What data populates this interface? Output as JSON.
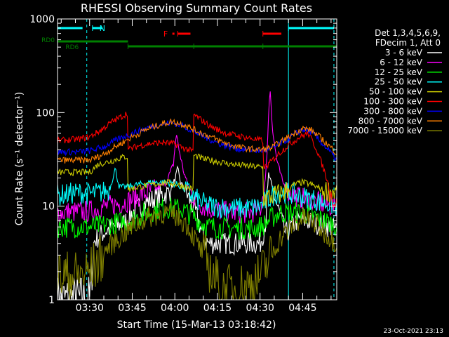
{
  "chart_data": {
    "type": "line",
    "title": "RHESSI Observing Summary Count Rates",
    "xlabel": "Start Time (15-Mar-13 03:18:42)",
    "ylabel": "Count Rate (s⁻¹ detector⁻¹)",
    "yscale": "log",
    "ylim": [
      1,
      1000
    ],
    "xlim": [
      "03:18:42",
      "04:57:00"
    ],
    "x_ticks": [
      "03:30",
      "03:45",
      "04:00",
      "04:15",
      "04:30",
      "04:45"
    ],
    "y_ticks": [
      "1",
      "10",
      "100",
      "1000"
    ],
    "footer": "23-Oct-2021 23:13",
    "legend_header": [
      "Det 1,3,4,5,6,9,",
      "FDecim 1, Att 0"
    ],
    "grid": false,
    "legend_position": "right",
    "flags": [
      {
        "label": "N",
        "color": "#00ffff",
        "segments": [
          [
            "03:18:42",
            "03:27:30"
          ],
          [
            "03:31:00",
            "03:34:30"
          ],
          [
            "04:40:00",
            "04:56:00"
          ]
        ]
      },
      {
        "label": "F",
        "color": "#ff0000",
        "segments": [
          [
            "04:01:00",
            "04:05:30"
          ],
          [
            "04:31:00",
            "04:37:30"
          ]
        ],
        "dots": [
          "03:59:30"
        ]
      },
      {
        "label": "RD0",
        "color": "#008000",
        "segments": [
          [
            "03:18:42",
            "03:43:30"
          ]
        ]
      },
      {
        "label": "RD6",
        "color": "#008000",
        "segments": [
          [
            "03:43:30",
            "04:06:40"
          ],
          [
            "04:06:40",
            "04:31:00"
          ],
          [
            "04:31:00",
            "04:57:00"
          ]
        ]
      }
    ],
    "vlines_solid": [
      "03:18:42",
      "04:40:00"
    ],
    "vlines_dashed": [
      "03:29:00",
      "04:56:00"
    ],
    "series": [
      {
        "name": "3 - 6 keV",
        "color": "#ffffff",
        "points": [
          [
            "03:18:42",
            1.0
          ],
          [
            "03:30:00",
            1.0
          ],
          [
            "03:31:30",
            4.2
          ],
          [
            "03:34:00",
            5.0
          ],
          [
            "03:38:00",
            6.0
          ],
          [
            "03:42:00",
            6.5
          ],
          [
            "03:45:00",
            8.5
          ],
          [
            "03:50:00",
            11
          ],
          [
            "03:55:00",
            13
          ],
          [
            "03:58:00",
            14
          ],
          [
            "04:00:00",
            19
          ],
          [
            "04:01:00",
            25
          ],
          [
            "04:02:00",
            18
          ],
          [
            "04:04:00",
            14
          ],
          [
            "04:07:00",
            9
          ],
          [
            "04:09:00",
            6
          ],
          [
            "04:10:00",
            4.5
          ],
          [
            "04:12:00",
            4
          ],
          [
            "04:20:00",
            4
          ],
          [
            "04:28:00",
            4
          ],
          [
            "04:30:00",
            4
          ],
          [
            "04:31:00",
            5
          ],
          [
            "04:32:00",
            7
          ],
          [
            "04:33:00",
            22
          ],
          [
            "04:35:00",
            13
          ],
          [
            "04:37:00",
            8
          ],
          [
            "04:39:00",
            5
          ],
          [
            "04:41:00",
            6
          ],
          [
            "04:43:00",
            7
          ],
          [
            "04:46:00",
            7
          ],
          [
            "04:50:00",
            6.5
          ],
          [
            "04:55:00",
            6
          ],
          [
            "04:57:00",
            5.5
          ]
        ]
      },
      {
        "name": "6 - 12 keV",
        "color": "#ff00ff",
        "points": [
          [
            "03:18:42",
            8.5
          ],
          [
            "03:30:00",
            8.8
          ],
          [
            "03:33:00",
            9.5
          ],
          [
            "03:36:00",
            10
          ],
          [
            "03:40:00",
            10.5
          ],
          [
            "03:44:00",
            11.5
          ],
          [
            "03:48:00",
            13
          ],
          [
            "03:53:00",
            15
          ],
          [
            "03:57:00",
            18
          ],
          [
            "03:59:30",
            28
          ],
          [
            "04:00:30",
            60
          ],
          [
            "04:01:30",
            40
          ],
          [
            "04:03:00",
            24
          ],
          [
            "04:05:00",
            15
          ],
          [
            "04:07:00",
            12
          ],
          [
            "04:10:00",
            10
          ],
          [
            "04:15:00",
            9
          ],
          [
            "04:20:00",
            8.5
          ],
          [
            "04:25:00",
            8.5
          ],
          [
            "04:30:00",
            9
          ],
          [
            "04:32:00",
            20
          ],
          [
            "04:33:30",
            190
          ],
          [
            "04:34:30",
            60
          ],
          [
            "04:36:00",
            30
          ],
          [
            "04:38:00",
            18
          ],
          [
            "04:40:00",
            14
          ],
          [
            "04:45:00",
            12
          ],
          [
            "04:50:00",
            11
          ],
          [
            "04:55:00",
            10
          ],
          [
            "04:57:00",
            9.5
          ]
        ]
      },
      {
        "name": "12 - 25 keV",
        "color": "#00ff00",
        "points": [
          [
            "03:18:42",
            6.0
          ],
          [
            "03:30:00",
            6.0
          ],
          [
            "03:34:00",
            6.2
          ],
          [
            "03:38:00",
            6.5
          ],
          [
            "03:42:00",
            6.8
          ],
          [
            "03:45:00",
            7.2
          ],
          [
            "03:50:00",
            8.5
          ],
          [
            "03:55:00",
            9.5
          ],
          [
            "04:00:00",
            9.5
          ],
          [
            "04:03:00",
            9.0
          ],
          [
            "04:06:00",
            8.0
          ],
          [
            "04:09:00",
            6.8
          ],
          [
            "04:12:00",
            6.0
          ],
          [
            "04:20:00",
            5.8
          ],
          [
            "04:28:00",
            5.8
          ],
          [
            "04:31:00",
            6.2
          ],
          [
            "04:34:00",
            7.5
          ],
          [
            "04:37:00",
            8.5
          ],
          [
            "04:40:00",
            8.5
          ],
          [
            "04:45:00",
            8.5
          ],
          [
            "04:50:00",
            7.5
          ],
          [
            "04:55:00",
            6.5
          ],
          [
            "04:57:00",
            6.2
          ]
        ]
      },
      {
        "name": "25 - 50 keV",
        "color": "#00ffff",
        "points": [
          [
            "03:18:42",
            13
          ],
          [
            "03:26:00",
            14
          ],
          [
            "03:30:00",
            13.5
          ],
          [
            "03:34:00",
            14
          ],
          [
            "03:37:00",
            15
          ],
          [
            "03:39:00",
            25
          ],
          [
            "03:40:30",
            16
          ],
          [
            "03:43:00",
            16
          ],
          [
            "03:47:00",
            17
          ],
          [
            "03:52:00",
            18
          ],
          [
            "03:57:00",
            18
          ],
          [
            "04:01:00",
            17
          ],
          [
            "04:05:00",
            14
          ],
          [
            "04:09:00",
            11
          ],
          [
            "04:13:00",
            10
          ],
          [
            "04:20:00",
            9.5
          ],
          [
            "04:26:00",
            9.5
          ],
          [
            "04:30:00",
            10
          ],
          [
            "04:33:00",
            12
          ],
          [
            "04:36:00",
            14
          ],
          [
            "04:40:00",
            14
          ],
          [
            "04:43:00",
            13
          ],
          [
            "04:48:00",
            12
          ],
          [
            "04:52:00",
            11
          ],
          [
            "04:57:00",
            10
          ]
        ]
      },
      {
        "name": "50 - 100 keV",
        "color": "#cccc00",
        "points": [
          [
            "03:18:42",
            23
          ],
          [
            "03:26:00",
            23
          ],
          [
            "03:30:00",
            23
          ],
          [
            "03:33:00",
            28
          ],
          [
            "03:37:00",
            30
          ],
          [
            "03:41:00",
            33
          ],
          [
            "03:43:30",
            34
          ],
          [
            "03:43:31",
            15
          ],
          [
            "03:47:00",
            16
          ],
          [
            "03:52:00",
            17
          ],
          [
            "03:57:00",
            18
          ],
          [
            "04:01:00",
            17
          ],
          [
            "04:04:00",
            16
          ],
          [
            "04:06:40",
            15
          ],
          [
            "04:06:41",
            35
          ],
          [
            "04:10:00",
            32
          ],
          [
            "04:15:00",
            30
          ],
          [
            "04:20:00",
            28
          ],
          [
            "04:25:00",
            27
          ],
          [
            "04:31:00",
            26
          ],
          [
            "04:31:01",
            12
          ],
          [
            "04:35:00",
            13
          ],
          [
            "04:38:00",
            14
          ],
          [
            "04:40:00",
            15
          ],
          [
            "04:42:00",
            17
          ],
          [
            "04:45:00",
            18
          ],
          [
            "04:48:00",
            17
          ],
          [
            "04:52:00",
            15
          ],
          [
            "04:57:00",
            14
          ]
        ]
      },
      {
        "name": "100 - 300 keV",
        "color": "#ff0000",
        "points": [
          [
            "03:18:42",
            50
          ],
          [
            "03:26:00",
            52
          ],
          [
            "03:30:00",
            55
          ],
          [
            "03:34:00",
            65
          ],
          [
            "03:38:00",
            80
          ],
          [
            "03:41:00",
            90
          ],
          [
            "03:43:30",
            100
          ],
          [
            "03:43:31",
            40
          ],
          [
            "03:47:00",
            44
          ],
          [
            "03:52:00",
            47
          ],
          [
            "03:56:00",
            48
          ],
          [
            "04:00:00",
            46
          ],
          [
            "04:03:00",
            42
          ],
          [
            "04:06:40",
            38
          ],
          [
            "04:06:41",
            95
          ],
          [
            "04:09:00",
            85
          ],
          [
            "04:13:00",
            70
          ],
          [
            "04:18:00",
            60
          ],
          [
            "04:24:00",
            55
          ],
          [
            "04:31:00",
            50
          ],
          [
            "04:31:01",
            25
          ],
          [
            "04:33:00",
            28
          ],
          [
            "04:36:00",
            35
          ],
          [
            "04:40:00",
            45
          ],
          [
            "04:44:00",
            55
          ],
          [
            "04:47:00",
            60
          ],
          [
            "04:50:00",
            40
          ],
          [
            "04:53:00",
            22
          ],
          [
            "04:55:00",
            13
          ],
          [
            "04:57:00",
            10
          ]
        ]
      },
      {
        "name": "300 - 800 keV",
        "color": "#0000ff",
        "points": [
          [
            "03:18:42",
            38
          ],
          [
            "03:26:00",
            38
          ],
          [
            "03:30:00",
            39
          ],
          [
            "03:35:00",
            43
          ],
          [
            "03:40:00",
            52
          ],
          [
            "03:45:00",
            60
          ],
          [
            "03:50:00",
            68
          ],
          [
            "03:55:00",
            75
          ],
          [
            "03:59:00",
            78
          ],
          [
            "04:03:00",
            72
          ],
          [
            "04:07:00",
            62
          ],
          [
            "04:12:00",
            52
          ],
          [
            "04:17:00",
            45
          ],
          [
            "04:22:00",
            41
          ],
          [
            "04:26:00",
            40
          ],
          [
            "04:30:00",
            39
          ],
          [
            "04:34:00",
            41
          ],
          [
            "04:38:00",
            48
          ],
          [
            "04:42:00",
            58
          ],
          [
            "04:45:00",
            66
          ],
          [
            "04:48:00",
            62
          ],
          [
            "04:51:00",
            50
          ],
          [
            "04:54:00",
            40
          ],
          [
            "04:57:00",
            31
          ]
        ]
      },
      {
        "name": "800 - 7000 keV",
        "color": "#ff8000",
        "points": [
          [
            "03:18:42",
            31
          ],
          [
            "03:26:00",
            31
          ],
          [
            "03:30:00",
            31
          ],
          [
            "03:35:00",
            36
          ],
          [
            "03:40:00",
            45
          ],
          [
            "03:45:00",
            55
          ],
          [
            "03:50:00",
            66
          ],
          [
            "03:55:00",
            75
          ],
          [
            "03:59:00",
            80
          ],
          [
            "04:03:00",
            75
          ],
          [
            "04:07:00",
            65
          ],
          [
            "04:12:00",
            56
          ],
          [
            "04:17:00",
            48
          ],
          [
            "04:22:00",
            43
          ],
          [
            "04:26:00",
            41
          ],
          [
            "04:30:00",
            40
          ],
          [
            "04:34:00",
            42
          ],
          [
            "04:38:00",
            50
          ],
          [
            "04:42:00",
            60
          ],
          [
            "04:45:00",
            68
          ],
          [
            "04:48:00",
            65
          ],
          [
            "04:51:00",
            55
          ],
          [
            "04:54:00",
            45
          ],
          [
            "04:57:00",
            37
          ]
        ]
      },
      {
        "name": "7000 - 15000 keV",
        "color": "#808000",
        "points": [
          [
            "03:18:42",
            1.8
          ],
          [
            "03:26:00",
            1.8
          ],
          [
            "03:30:00",
            2.0
          ],
          [
            "03:33:00",
            2.5
          ],
          [
            "03:36:00",
            3.5
          ],
          [
            "03:40:00",
            4.5
          ],
          [
            "03:45:00",
            6.0
          ],
          [
            "03:50:00",
            7.5
          ],
          [
            "03:56:00",
            8.5
          ],
          [
            "04:00:00",
            8.0
          ],
          [
            "04:04:00",
            6.5
          ],
          [
            "04:07:00",
            4.5
          ],
          [
            "04:10:00",
            3.0
          ],
          [
            "04:13:00",
            2.0
          ],
          [
            "04:16:00",
            1.3
          ],
          [
            "04:22:00",
            1.3
          ],
          [
            "04:28:00",
            1.5
          ],
          [
            "04:31:00",
            2.0
          ],
          [
            "04:34:00",
            3.0
          ],
          [
            "04:37:00",
            4.5
          ],
          [
            "04:41:00",
            6.0
          ],
          [
            "04:45:00",
            7.5
          ],
          [
            "04:48:00",
            7.0
          ],
          [
            "04:52:00",
            5.5
          ],
          [
            "04:55:00",
            4.5
          ],
          [
            "04:57:00",
            4.0
          ]
        ]
      }
    ]
  }
}
